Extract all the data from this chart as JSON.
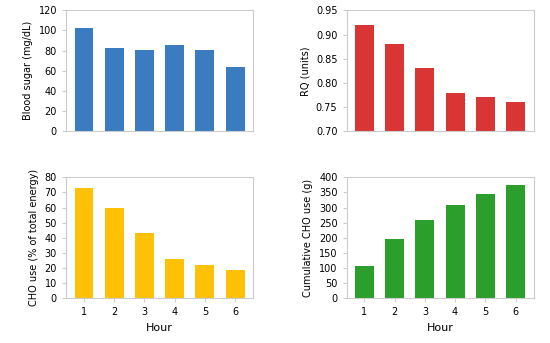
{
  "hours": [
    1,
    2,
    3,
    4,
    5,
    6
  ],
  "blood_sugar": [
    102,
    83,
    81,
    86,
    81,
    64
  ],
  "blood_sugar_ylim": [
    0,
    120
  ],
  "blood_sugar_yticks": [
    0,
    20,
    40,
    60,
    80,
    100,
    120
  ],
  "blood_sugar_ylabel": "Blood sugar (mg/dL)",
  "blood_sugar_color": "#3b7bbf",
  "rq": [
    0.92,
    0.88,
    0.83,
    0.78,
    0.77,
    0.76
  ],
  "rq_ylim": [
    0.7,
    0.95
  ],
  "rq_yticks": [
    0.7,
    0.75,
    0.8,
    0.85,
    0.9,
    0.95
  ],
  "rq_ylabel": "RQ (units)",
  "rq_color": "#d93535",
  "cho_use": [
    73,
    60,
    43,
    26,
    22,
    19
  ],
  "cho_use_ylim": [
    0,
    80
  ],
  "cho_use_yticks": [
    0,
    10,
    20,
    30,
    40,
    50,
    60,
    70,
    80
  ],
  "cho_use_ylabel": "CHO use (% of total energy)",
  "cho_use_color": "#ffc107",
  "cum_cho": [
    107,
    195,
    260,
    307,
    345,
    375
  ],
  "cum_cho_ylim": [
    0,
    400
  ],
  "cum_cho_yticks": [
    0,
    50,
    100,
    150,
    200,
    250,
    300,
    350,
    400
  ],
  "cum_cho_ylabel": "Cumulative CHO use (g)",
  "cum_cho_color": "#2c9e2c",
  "xlabel": "Hour",
  "box_color": "#cccccc",
  "background_color": "#ffffff"
}
